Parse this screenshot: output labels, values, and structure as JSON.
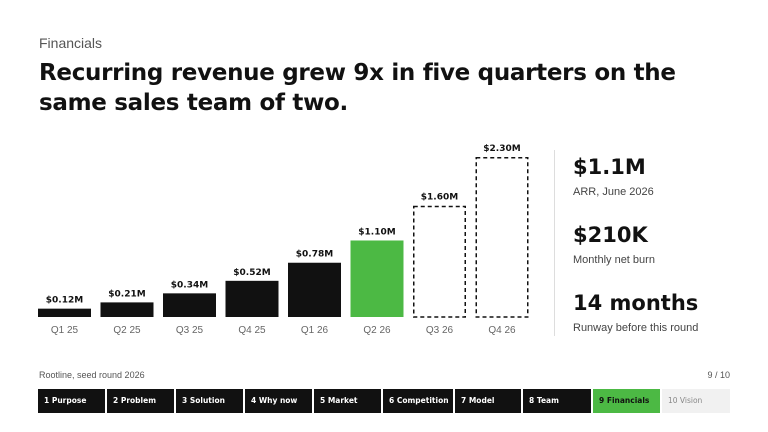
{
  "slide": {
    "eyebrow": "Financials",
    "headline": "Recurring revenue grew 9x in five quarters on the same sales team of two.",
    "footer_left": "Rootline, seed round 2026",
    "footer_right": "9 / 10"
  },
  "chart_data": {
    "type": "bar",
    "title": "",
    "xlabel": "",
    "ylabel": "",
    "categories": [
      "Q1 25",
      "Q2 25",
      "Q3 25",
      "Q4 25",
      "Q1 26",
      "Q2 26",
      "Q3 26",
      "Q4 26"
    ],
    "values": [
      0.12,
      0.21,
      0.34,
      0.52,
      0.78,
      1.1,
      1.6,
      2.3
    ],
    "labels": [
      "$0.12M",
      "$0.21M",
      "$0.34M",
      "$0.52M",
      "$0.78M",
      "$1.10M",
      "$1.60M",
      "$2.30M"
    ],
    "unit": "$M",
    "ylim": [
      0,
      2.3
    ],
    "grid": false,
    "legend": "none",
    "bar_styles": [
      "actual",
      "actual",
      "actual",
      "actual",
      "actual",
      "current",
      "projected",
      "projected"
    ],
    "colors": {
      "actual": "#111111",
      "current": "#4cb944",
      "projected_outline": "#111111"
    }
  },
  "kpis": [
    {
      "value": "$1.1M",
      "label": "ARR, June 2026"
    },
    {
      "value": "$210K",
      "label": "Monthly net burn"
    },
    {
      "value": "14 months",
      "label": "Runway before this round"
    }
  ],
  "nav": {
    "items": [
      {
        "label": "1 Purpose",
        "state": "done"
      },
      {
        "label": "2 Problem",
        "state": "done"
      },
      {
        "label": "3 Solution",
        "state": "done"
      },
      {
        "label": "4 Why now",
        "state": "done"
      },
      {
        "label": "5 Market",
        "state": "done"
      },
      {
        "label": "6 Competition",
        "state": "done"
      },
      {
        "label": "7 Model",
        "state": "done"
      },
      {
        "label": "8 Team",
        "state": "done"
      },
      {
        "label": "9 Financials",
        "state": "active"
      },
      {
        "label": "10 Vision",
        "state": "upcoming"
      }
    ]
  },
  "colors": {
    "accent": "#4cb944",
    "ink": "#111111"
  }
}
